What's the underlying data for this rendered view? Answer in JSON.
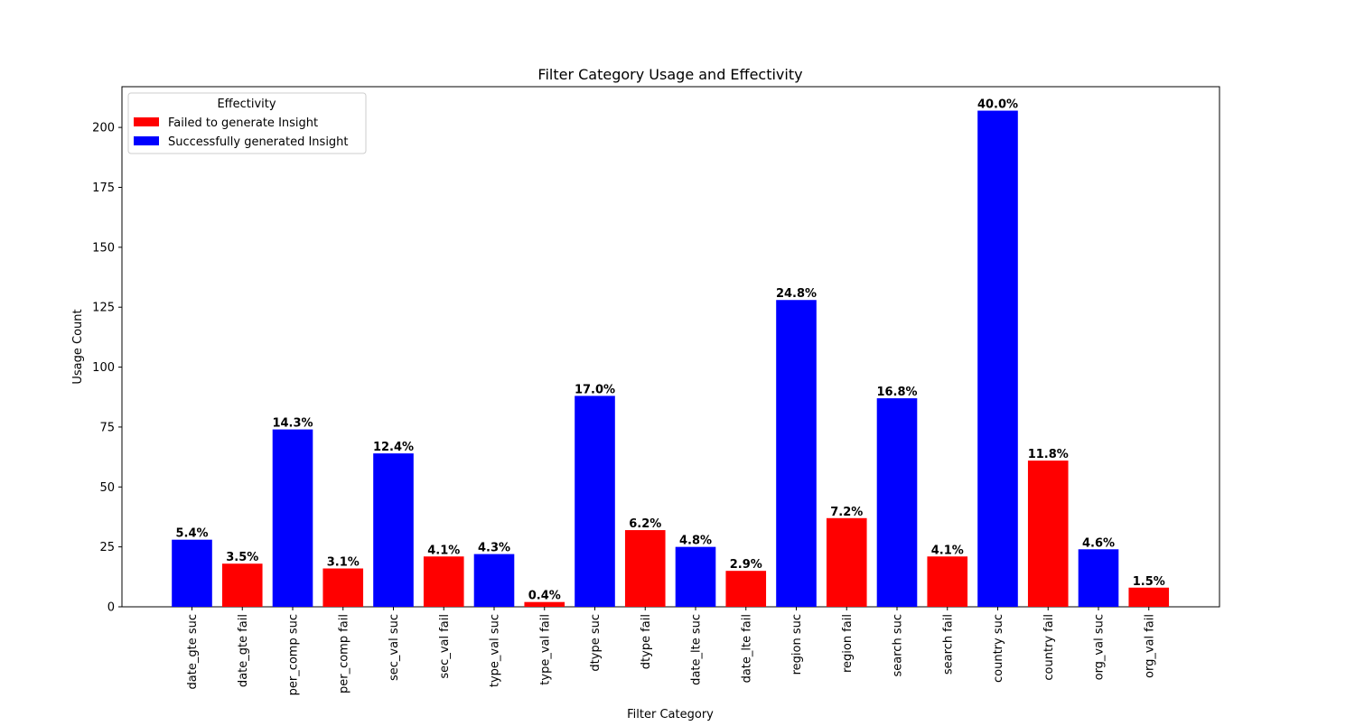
{
  "chart_data": {
    "type": "bar",
    "title": "Filter Category Usage and Effectivity",
    "xlabel": "Filter Category",
    "ylabel": "Usage Count",
    "ylim": [
      0,
      217
    ],
    "yticks": [
      0,
      25,
      50,
      75,
      100,
      125,
      150,
      175,
      200
    ],
    "categories": [
      "date_gte suc",
      "date_gte fail",
      "per_comp suc",
      "per_comp fail",
      "sec_val suc",
      "sec_val fail",
      "type_val suc",
      "type_val fail",
      "dtype suc",
      "dtype fail",
      "date_lte suc",
      "date_lte fail",
      "region suc",
      "region fail",
      "search suc",
      "search fail",
      "country suc",
      "country fail",
      "org_val suc",
      "org_val fail"
    ],
    "values": [
      28,
      18,
      74,
      16,
      64,
      21,
      22,
      2,
      88,
      32,
      25,
      15,
      128,
      37,
      87,
      21,
      207,
      61,
      24,
      8
    ],
    "labels": [
      "5.4%",
      "3.5%",
      "14.3%",
      "3.1%",
      "12.4%",
      "4.1%",
      "4.3%",
      "0.4%",
      "17.0%",
      "6.2%",
      "4.8%",
      "2.9%",
      "24.8%",
      "7.2%",
      "16.8%",
      "4.1%",
      "40.0%",
      "11.8%",
      "4.6%",
      "1.5%"
    ],
    "status": [
      "success",
      "fail",
      "success",
      "fail",
      "success",
      "fail",
      "success",
      "fail",
      "success",
      "fail",
      "success",
      "fail",
      "success",
      "fail",
      "success",
      "fail",
      "success",
      "fail",
      "success",
      "fail"
    ],
    "grid": false,
    "legend": {
      "title": "Effectivity",
      "placement": "top-left",
      "entries": [
        {
          "label": "Failed to generate Insight",
          "color": "#ff0000"
        },
        {
          "label": "Successfully generated Insight",
          "color": "#0000ff"
        }
      ]
    },
    "colors": {
      "success": "#0000ff",
      "fail": "#ff0000"
    }
  }
}
